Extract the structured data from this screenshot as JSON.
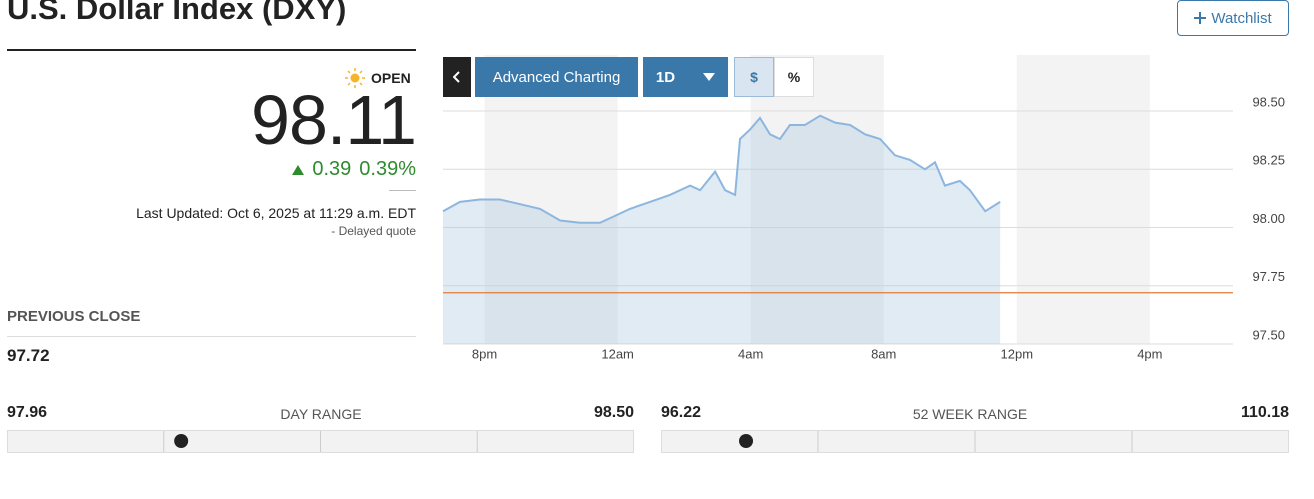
{
  "header": {
    "title": "U.S. Dollar Index (DXY)",
    "watchlist_button": "Watchlist"
  },
  "quote": {
    "status": "OPEN",
    "price": 98.11,
    "change": 0.39,
    "change_percent": "0.39%",
    "last_updated": "Last Updated: Oct 6, 2025 at 11:29 a.m. EDT",
    "delayed": "-  Delayed quote"
  },
  "previous_close": {
    "label": "PREVIOUS CLOSE",
    "value": 97.72
  },
  "toolbar": {
    "advanced": "Advanced Charting",
    "interval": "1D",
    "dollar": "$",
    "percent": "%"
  },
  "chart_data": {
    "type": "area",
    "color": "#8db6df",
    "reference_color": "#e07b39",
    "x": [
      18.75,
      19.26,
      19.86,
      20.46,
      21.07,
      21.67,
      22.27,
      22.87,
      23.47,
      23.92,
      24.37,
      24.97,
      25.57,
      26.18,
      26.48,
      26.93,
      27.23,
      27.53,
      27.68,
      27.98,
      28.28,
      28.58,
      28.88,
      29.18,
      29.63,
      30.09,
      30.54,
      30.99,
      31.44,
      31.89,
      32.34,
      32.79,
      33.24,
      33.54,
      33.84,
      34.29,
      34.59,
      35.05,
      35.5
    ],
    "values": [
      98.07,
      98.11,
      98.12,
      98.12,
      98.1,
      98.08,
      98.03,
      98.02,
      98.02,
      98.05,
      98.08,
      98.11,
      98.14,
      98.18,
      98.16,
      98.24,
      98.16,
      98.14,
      98.38,
      98.42,
      98.47,
      98.4,
      98.38,
      98.44,
      98.44,
      98.48,
      98.45,
      98.44,
      98.4,
      98.38,
      98.31,
      98.29,
      98.25,
      98.28,
      98.18,
      98.2,
      98.16,
      98.07,
      98.11
    ],
    "xlim": [
      18.75,
      42.5
    ],
    "xticks": [
      {
        "value": 20,
        "label": "8pm"
      },
      {
        "value": 24,
        "label": "12am"
      },
      {
        "value": 28,
        "label": "4am"
      },
      {
        "value": 32,
        "label": "8am"
      },
      {
        "value": 36,
        "label": "12pm"
      },
      {
        "value": 40,
        "label": "4pm"
      }
    ],
    "ylim": [
      97.5,
      98.5
    ],
    "yticks": [
      {
        "value": 98.5,
        "label": "98.50"
      },
      {
        "value": 98.25,
        "label": "98.25"
      },
      {
        "value": 98.0,
        "label": "98.00"
      },
      {
        "value": 97.75,
        "label": "97.75"
      },
      {
        "value": 97.5,
        "label": "97.50"
      }
    ],
    "grid": true
  },
  "day_range": {
    "label": "DAY RANGE",
    "low": 97.96,
    "high": {
      "value": 98.5,
      "label": "98.50"
    }
  },
  "week52_range": {
    "label": "52 WEEK RANGE",
    "low": 96.22,
    "high": 110.18
  }
}
